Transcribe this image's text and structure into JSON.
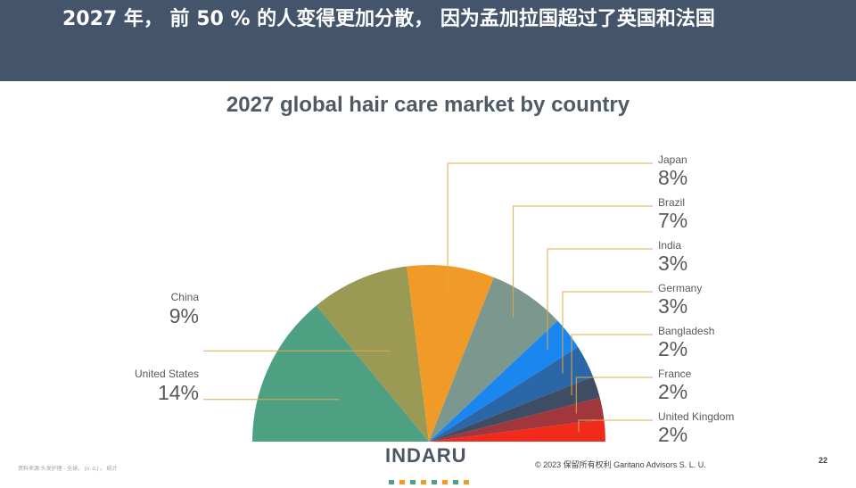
{
  "header": {
    "title": "2027 年， 前 50 % 的人变得更加分散， 因为孟加拉国超过了英国和法国"
  },
  "chart_data": {
    "type": "pie",
    "title": "2027 global hair care market by country",
    "value_suffix": "%",
    "slices": [
      {
        "label": "United States",
        "value": 14,
        "color": "#4ea082"
      },
      {
        "label": "China",
        "value": 9,
        "color": "#9a9a54"
      },
      {
        "label": "Japan",
        "value": 8,
        "color": "#f09a28"
      },
      {
        "label": "Brazil",
        "value": 7,
        "color": "#7c978e"
      },
      {
        "label": "India",
        "value": 3,
        "color": "#1a86f0"
      },
      {
        "label": "Germany",
        "value": 3,
        "color": "#2b66a6"
      },
      {
        "label": "Bangladesh",
        "value": 2,
        "color": "#3f4d64"
      },
      {
        "label": "France",
        "value": 2,
        "color": "#a1363c"
      },
      {
        "label": "United Kingdom",
        "value": 2,
        "color": "#f02b1b"
      }
    ],
    "leader_line_color": "#e3a84a"
  },
  "footer": {
    "brand": "INDARU",
    "brand_dot_colors": [
      "#4ea082",
      "#f09a28",
      "#4ea082",
      "#f09a28",
      "#4ea082",
      "#f09a28",
      "#4ea082",
      "#f09a28"
    ],
    "copyright": "© 2023 保留所有权利 Garitano Advisors S. L. U.",
    "source": "资料来源:头发护理 - 全球。 (n. d.) 。 统计",
    "page_number": "22"
  }
}
